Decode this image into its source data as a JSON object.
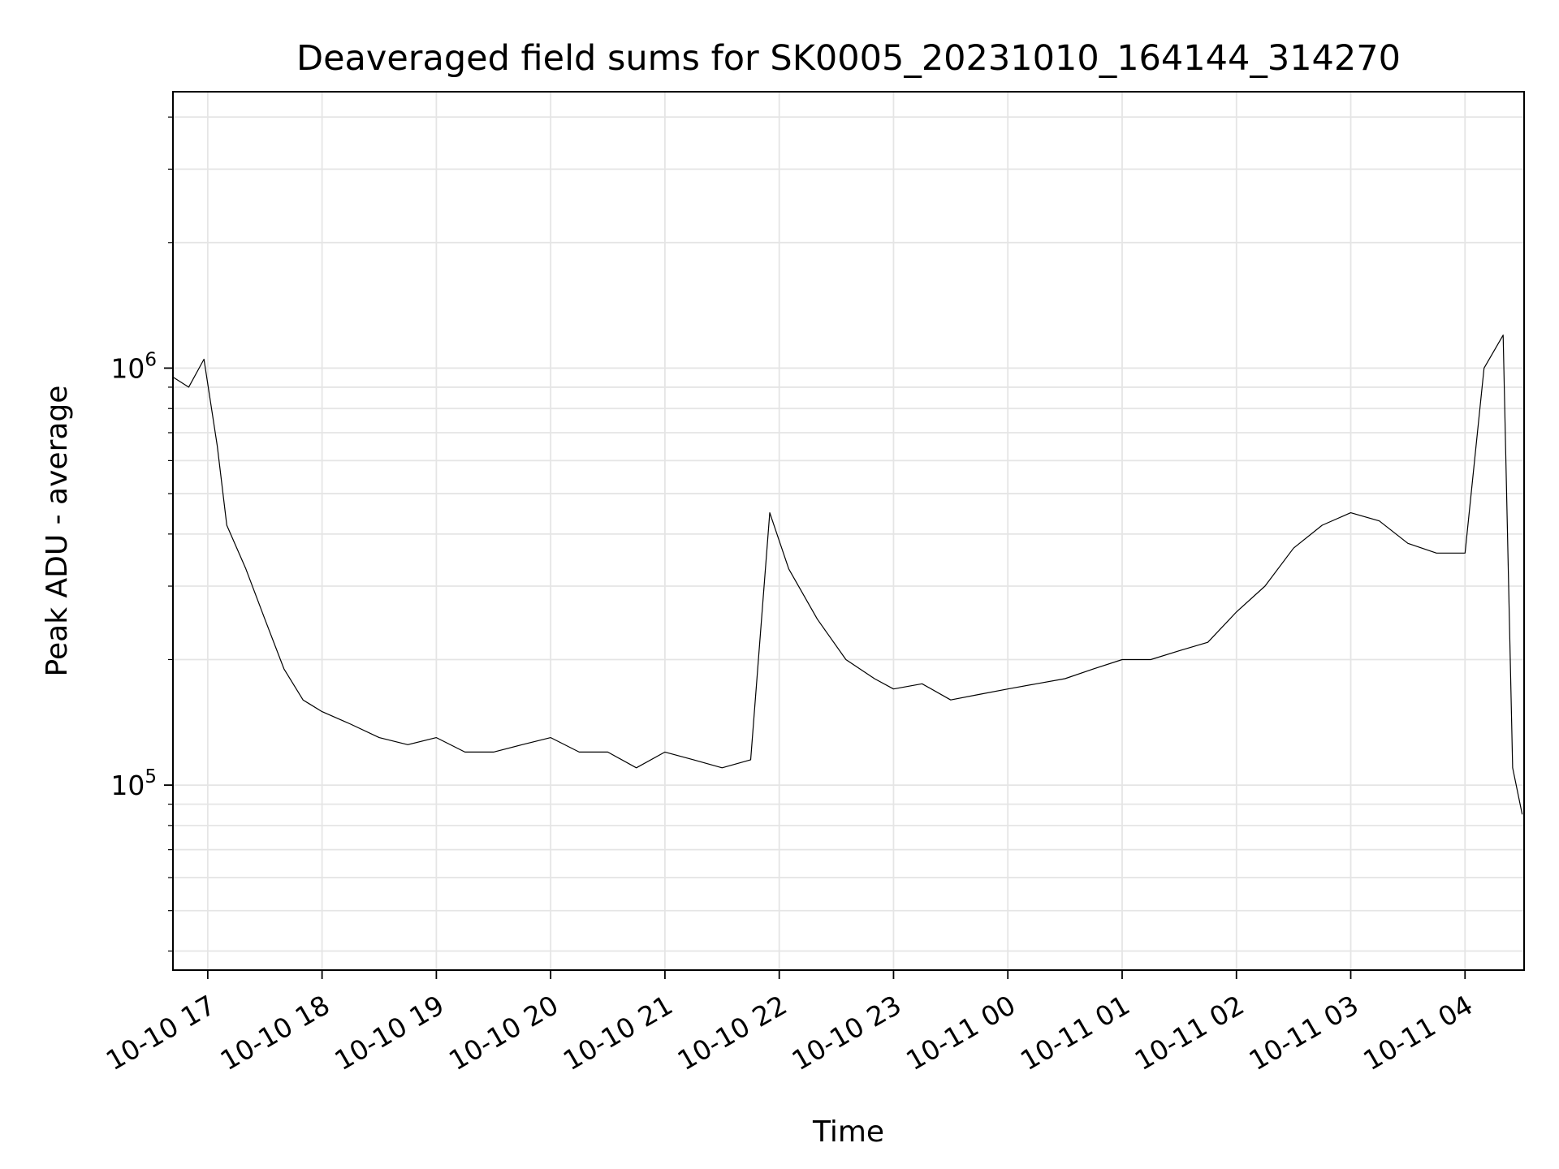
{
  "chart_data": {
    "type": "line",
    "title": "Deaveraged field sums for SK0005_20231010_164144_314270",
    "xlabel": "Time",
    "ylabel": "Peak ADU - average",
    "yscale": "log",
    "ylim": [
      36000,
      4600000
    ],
    "xlim": [
      "2023-10-10 16:41:44",
      "2023-10-11 04:31:00"
    ],
    "grid": true,
    "color": "#000000",
    "grid_color": "#e5e5e5",
    "x_tick_labels": [
      "10-10 17",
      "10-10 18",
      "10-10 19",
      "10-10 20",
      "10-10 21",
      "10-10 22",
      "10-10 23",
      "10-11 00",
      "10-11 01",
      "10-11 02",
      "10-11 03",
      "10-11 04"
    ],
    "y_tick_labels": [
      {
        "base": "10",
        "exp": "5",
        "value": 100000
      },
      {
        "base": "10",
        "exp": "6",
        "value": 1000000
      }
    ],
    "series": [
      {
        "x": [
          "2023-10-10 16:42",
          "2023-10-10 16:50",
          "2023-10-10 16:58",
          "2023-10-10 17:05",
          "2023-10-10 17:10",
          "2023-10-10 17:20",
          "2023-10-10 17:30",
          "2023-10-10 17:40",
          "2023-10-10 17:50",
          "2023-10-10 18:00",
          "2023-10-10 18:15",
          "2023-10-10 18:30",
          "2023-10-10 18:45",
          "2023-10-10 19:00",
          "2023-10-10 19:15",
          "2023-10-10 19:30",
          "2023-10-10 19:45",
          "2023-10-10 20:00",
          "2023-10-10 20:15",
          "2023-10-10 20:30",
          "2023-10-10 20:45",
          "2023-10-10 21:00",
          "2023-10-10 21:15",
          "2023-10-10 21:30",
          "2023-10-10 21:45",
          "2023-10-10 21:55",
          "2023-10-10 22:05",
          "2023-10-10 22:20",
          "2023-10-10 22:35",
          "2023-10-10 22:50",
          "2023-10-10 23:00",
          "2023-10-10 23:15",
          "2023-10-10 23:30",
          "2023-10-10 23:45",
          "2023-10-11 00:00",
          "2023-10-11 00:15",
          "2023-10-11 00:30",
          "2023-10-11 00:45",
          "2023-10-11 01:00",
          "2023-10-11 01:15",
          "2023-10-11 01:30",
          "2023-10-11 01:45",
          "2023-10-11 02:00",
          "2023-10-11 02:15",
          "2023-10-11 02:30",
          "2023-10-11 02:45",
          "2023-10-11 03:00",
          "2023-10-11 03:15",
          "2023-10-11 03:30",
          "2023-10-11 03:45",
          "2023-10-11 04:00",
          "2023-10-11 04:10",
          "2023-10-11 04:20",
          "2023-10-11 04:25",
          "2023-10-11 04:30"
        ],
        "y": [
          950000,
          900000,
          1050000,
          650000,
          420000,
          330000,
          250000,
          190000,
          160000,
          150000,
          140000,
          130000,
          125000,
          130000,
          120000,
          120000,
          125000,
          130000,
          120000,
          120000,
          110000,
          120000,
          115000,
          110000,
          115000,
          450000,
          330000,
          250000,
          200000,
          180000,
          170000,
          175000,
          160000,
          165000,
          170000,
          175000,
          180000,
          190000,
          200000,
          200000,
          210000,
          220000,
          260000,
          300000,
          370000,
          420000,
          450000,
          430000,
          380000,
          360000,
          360000,
          1000000,
          1200000,
          110000,
          85000
        ]
      }
    ]
  }
}
